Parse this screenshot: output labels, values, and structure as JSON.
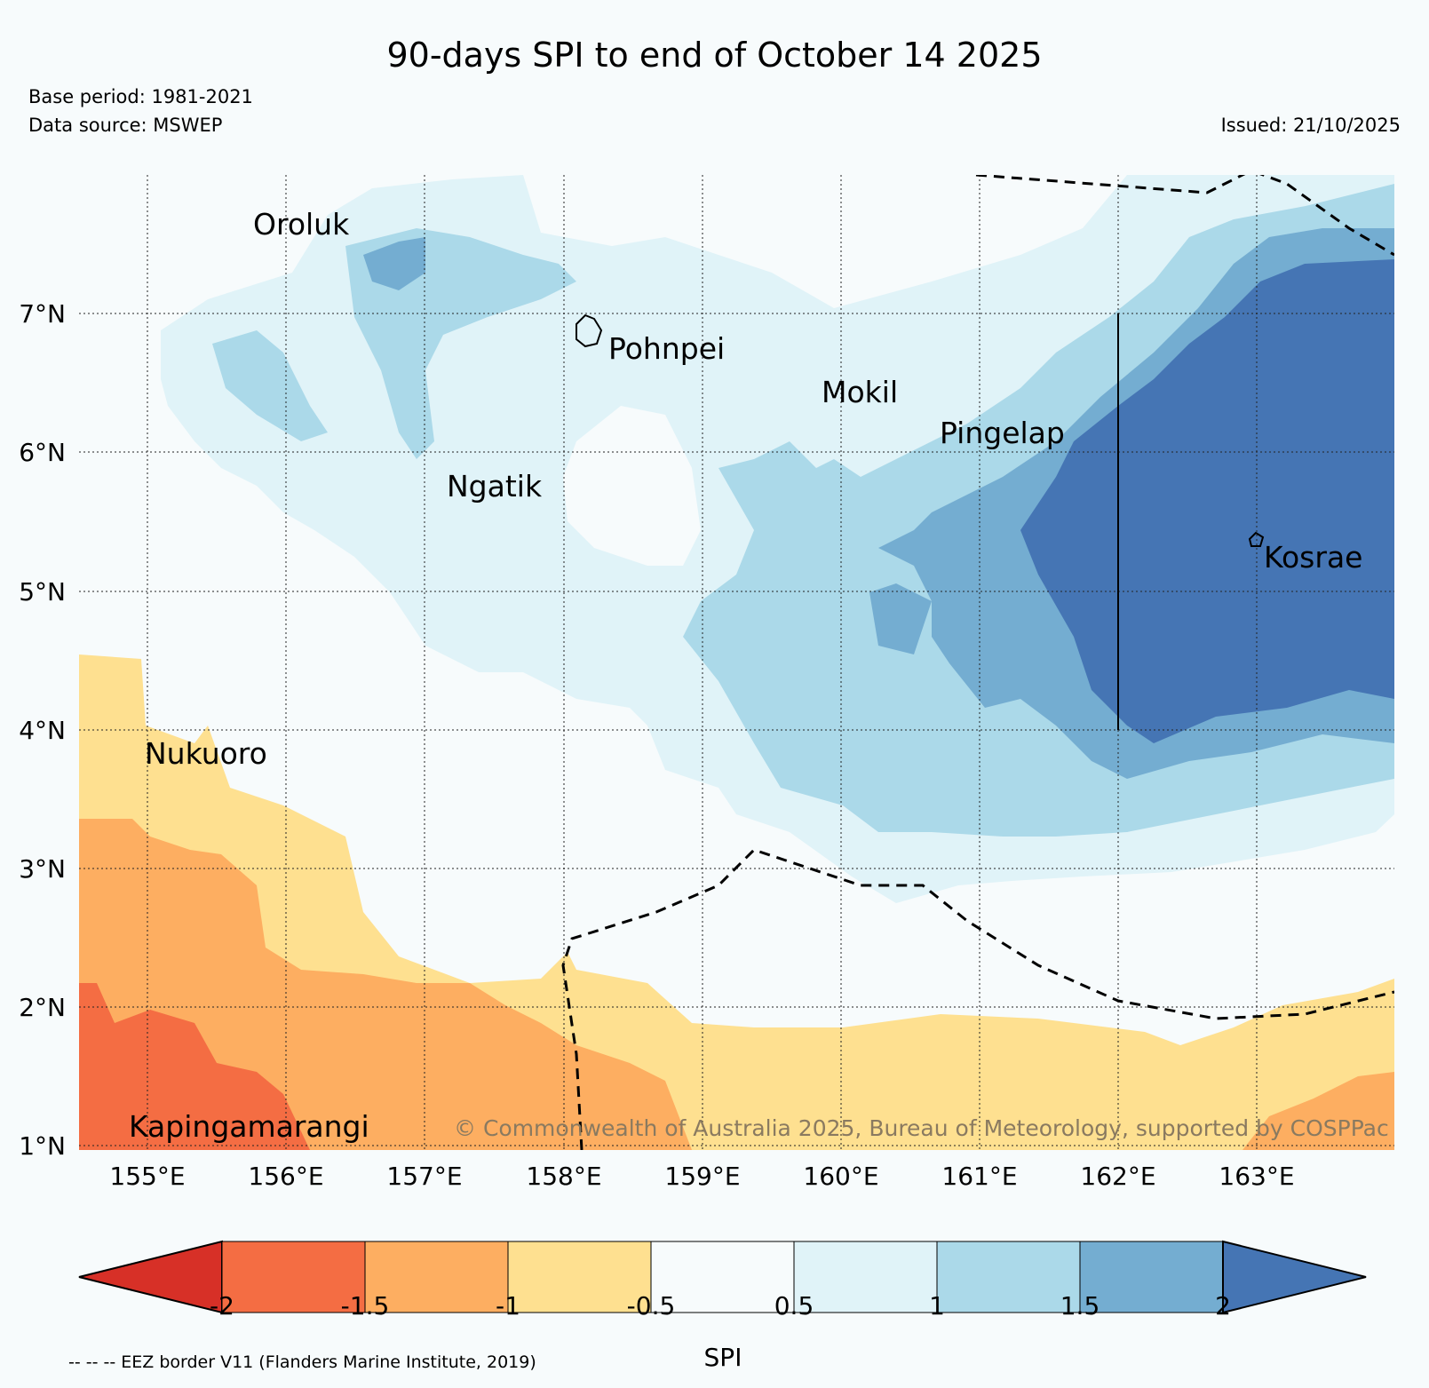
{
  "title": "90-days SPI to end of October 14 2025",
  "base_period": "Base period: 1981-2021",
  "data_source": "Data source: MSWEP",
  "issued": "Issued: 21/10/2025",
  "y_ticks": [
    "7°N",
    "6°N",
    "5°N",
    "4°N",
    "3°N",
    "2°N",
    "1°N"
  ],
  "x_ticks": [
    "155°E",
    "156°E",
    "157°E",
    "158°E",
    "159°E",
    "160°E",
    "161°E",
    "162°E",
    "163°E"
  ],
  "places": {
    "oroluk": "Oroluk",
    "pohnpei": "Pohnpei",
    "mokil": "Mokil",
    "pingelap": "Pingelap",
    "ngatik": "Ngatik",
    "kosrae": "Kosrae",
    "nukuoro": "Nukuoro",
    "kapingamarangi": "Kapingamarangi"
  },
  "credit": "© Commonwealth of Australia 2025, Bureau of Meteorology, supported by COSPPac",
  "colorbar": {
    "title": "SPI",
    "labels": [
      "-2",
      "-1.5",
      "-1",
      "-0.5",
      "0.5",
      "1",
      "1.5",
      "2"
    ],
    "colors": {
      "lt_neg2": "#d73027",
      "neg2_neg15": "#f46d43",
      "neg15_neg1": "#fdae61",
      "neg1_neg05": "#fee090",
      "neutral": "#f7fbfc",
      "p05_1": "#e0f3f8",
      "p1_15": "#abd9e9",
      "p15_2": "#74add1",
      "gt_2": "#4575b4"
    }
  },
  "eez_note": "-- -- -- EEZ border V11 (Flanders Marine Institute, 2019)"
}
